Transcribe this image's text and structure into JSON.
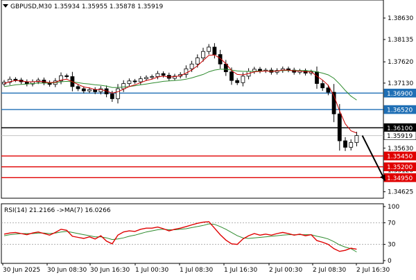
{
  "header": {
    "title": "GBPUSD,M30",
    "ohlc": "1.35934 1.35955 1.35878 1.35919"
  },
  "rsi_header": "RSI(14) 21.2166  ->MA(7) 16.0266",
  "colors": {
    "background": "#ffffff",
    "candle_up": "#000000",
    "candle_down": "#000000",
    "ma_fast": "#cc0000",
    "ma_slow": "#2e8b2e",
    "level_blue": "#1f6fb5",
    "level_black": "#000000",
    "level_red": "#e00000",
    "rsi_line": "#e00000",
    "rsi_ma": "#2e8b2e",
    "arrow": "#000000",
    "label_blue_bg": "#1f6fb5",
    "label_red_bg": "#e00000",
    "label_black_bg": "#000000"
  },
  "chart_data": [
    {
      "type": "line",
      "title": "GBPUSD,M30",
      "ylim": [
        1.3445,
        1.3898
      ],
      "y_ticks": [
        "1.38630",
        "1.38135",
        "1.37620",
        "1.37130",
        "1.36520",
        "1.35630",
        "1.35120",
        "1.34625"
      ],
      "x_ticks": [
        "30 Jun 2025",
        "30 Jun 08:30",
        "30 Jun 16:30",
        "1 Jul 00:30",
        "1 Jul 08:30",
        "1 Jul 16:30",
        "2 Jul 00:30",
        "2 Jul 08:30",
        "2 Jul 16:30"
      ],
      "series": [
        {
          "role": "price",
          "values": [
            1.3715,
            1.3722,
            1.372,
            1.3716,
            1.3711,
            1.3716,
            1.372,
            1.3714,
            1.371,
            1.3718,
            1.373,
            1.3728,
            1.3705,
            1.37,
            1.3695,
            1.3698,
            1.3693,
            1.37,
            1.3688,
            1.3677,
            1.37,
            1.3712,
            1.3718,
            1.3716,
            1.3723,
            1.3726,
            1.3728,
            1.3735,
            1.3731,
            1.3724,
            1.3729,
            1.3733,
            1.3746,
            1.3757,
            1.3771,
            1.3786,
            1.3796,
            1.3779,
            1.3757,
            1.3739,
            1.3719,
            1.3714,
            1.3729,
            1.374,
            1.3745,
            1.3741,
            1.3743,
            1.3738,
            1.3742,
            1.3746,
            1.3743,
            1.3738,
            1.3741,
            1.3736,
            1.3739,
            1.3712,
            1.3702,
            1.3692,
            1.3642,
            1.358,
            1.3565,
            1.3576,
            1.3592
          ]
        },
        {
          "role": "ma_fast",
          "values": [
            1.3712,
            1.3716,
            1.3719,
            1.3718,
            1.3716,
            1.3716,
            1.3717,
            1.3716,
            1.3714,
            1.3715,
            1.372,
            1.3722,
            1.3716,
            1.371,
            1.3704,
            1.3702,
            1.3698,
            1.3698,
            1.3695,
            1.369,
            1.3693,
            1.3699,
            1.3705,
            1.3709,
            1.3714,
            1.3719,
            1.3722,
            1.3727,
            1.3729,
            1.3727,
            1.3728,
            1.373,
            1.3736,
            1.3743,
            1.3753,
            1.3765,
            1.3777,
            1.3778,
            1.377,
            1.3758,
            1.3742,
            1.3733,
            1.3732,
            1.3735,
            1.3739,
            1.374,
            1.3741,
            1.374,
            1.3741,
            1.3743,
            1.3743,
            1.3741,
            1.3741,
            1.3739,
            1.3739,
            1.3729,
            1.372,
            1.3708,
            1.3684,
            1.3649,
            1.3619,
            1.3603,
            1.3598
          ]
        },
        {
          "role": "ma_slow",
          "values": [
            1.3705,
            1.3707,
            1.3709,
            1.371,
            1.3711,
            1.3712,
            1.3713,
            1.3713,
            1.3713,
            1.3714,
            1.3716,
            1.3717,
            1.3716,
            1.3714,
            1.3712,
            1.3711,
            1.3709,
            1.3708,
            1.3706,
            1.3703,
            1.3703,
            1.3704,
            1.3705,
            1.3707,
            1.3709,
            1.3711,
            1.3713,
            1.3715,
            1.3717,
            1.3718,
            1.3719,
            1.372,
            1.3722,
            1.3725,
            1.3729,
            1.3733,
            1.3739,
            1.3743,
            1.3745,
            1.3745,
            1.3743,
            1.3741,
            1.374,
            1.374,
            1.374,
            1.3741,
            1.3741,
            1.3741,
            1.3741,
            1.3742,
            1.3742,
            1.3742,
            1.3742,
            1.3742,
            1.3741,
            1.3739,
            1.3736,
            1.3732,
            1.3724,
            1.3711,
            1.3696,
            1.3683,
            1.3674
          ]
        }
      ],
      "levels": [
        {
          "price": 1.369,
          "label": "1.36900",
          "style": "blue"
        },
        {
          "price": 1.3652,
          "label": "1.36520",
          "style": "blue"
        },
        {
          "price": 1.361,
          "label": "1.36100",
          "style": "black"
        },
        {
          "price": 1.35919,
          "label": "1.35919",
          "style": "current"
        },
        {
          "price": 1.3545,
          "label": "1.35450",
          "style": "red"
        },
        {
          "price": 1.352,
          "label": "1.35200",
          "style": "red"
        },
        {
          "price": 1.3495,
          "label": "1.34950",
          "style": "red"
        }
      ],
      "annotations": [
        {
          "type": "arrow",
          "from_index": 63,
          "from_price": 1.3592,
          "to_index": 67,
          "to_price": 1.3488
        }
      ]
    },
    {
      "type": "line",
      "title": "RSI(14) 21.2166  ->MA(7) 16.0266",
      "ylim": [
        0,
        100
      ],
      "y_ticks": [
        "100",
        "70",
        "30",
        "0"
      ],
      "guides": [
        70,
        30
      ],
      "series": [
        {
          "role": "rsi",
          "values": [
            49,
            51,
            52,
            50,
            48,
            51,
            53,
            50,
            47,
            52,
            58,
            56,
            45,
            43,
            41,
            44,
            40,
            46,
            36,
            31,
            47,
            53,
            55,
            54,
            58,
            60,
            60,
            62,
            59,
            55,
            58,
            60,
            63,
            66,
            69,
            71,
            72,
            60,
            48,
            38,
            31,
            30,
            40,
            46,
            50,
            47,
            49,
            47,
            50,
            52,
            50,
            47,
            49,
            46,
            48,
            37,
            34,
            30,
            22,
            17,
            19,
            23,
            21
          ]
        },
        {
          "role": "rsi_ma",
          "values": [
            46,
            48,
            49,
            50,
            50,
            50,
            51,
            51,
            50,
            51,
            53,
            54,
            52,
            50,
            48,
            46,
            44,
            44,
            42,
            39,
            40,
            42,
            45,
            47,
            50,
            53,
            55,
            57,
            58,
            57,
            57,
            58,
            59,
            61,
            63,
            65,
            68,
            67,
            63,
            58,
            52,
            46,
            42,
            41,
            42,
            43,
            44,
            45,
            46,
            47,
            48,
            48,
            48,
            48,
            48,
            45,
            43,
            40,
            35,
            29,
            25,
            22,
            16
          ]
        }
      ]
    }
  ]
}
